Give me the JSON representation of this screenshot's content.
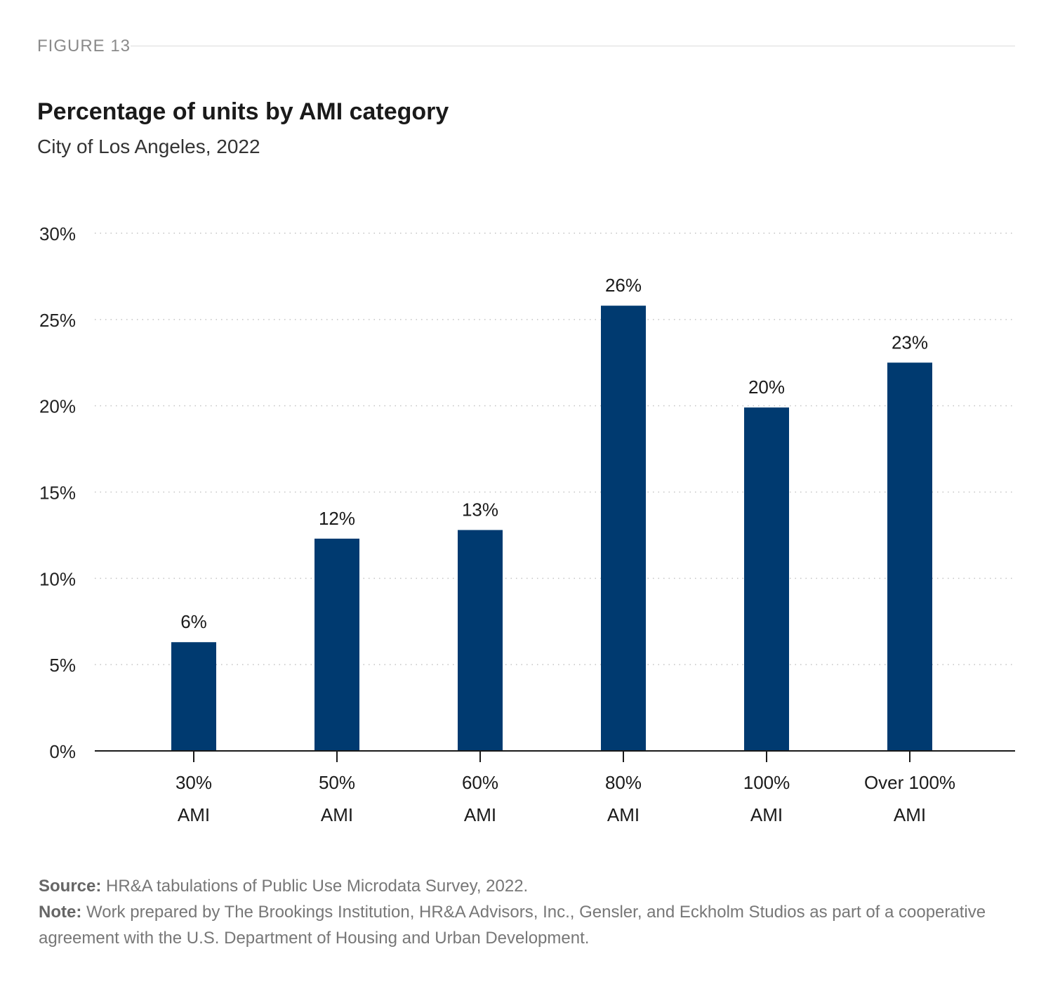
{
  "figure_label": "FIGURE 13",
  "footer": {
    "source_label": "Source:",
    "source_text": "HR&A tabulations of Public Use Microdata Survey, 2022.",
    "note_label": "Note:",
    "note_text": "Work prepared by The Brookings Institution, HR&A Advisors, Inc., Gensler, and Eckholm Studios as part of a cooperative agreement with the U.S. Department of Housing and Urban Development."
  },
  "chart_data": {
    "type": "bar",
    "title": "Percentage of units by AMI category",
    "subtitle": "City of Los Angeles, 2022",
    "categories": [
      [
        "30%",
        "AMI"
      ],
      [
        "50%",
        "AMI"
      ],
      [
        "60%",
        "AMI"
      ],
      [
        "80%",
        "AMI"
      ],
      [
        "100%",
        "AMI"
      ],
      [
        "Over 100%",
        "AMI"
      ]
    ],
    "values": [
      6.3,
      12.3,
      12.8,
      25.8,
      19.9,
      22.5
    ],
    "data_labels": [
      "6%",
      "12%",
      "13%",
      "26%",
      "20%",
      "23%"
    ],
    "ylim": [
      0,
      30
    ],
    "yticks": [
      0,
      5,
      10,
      15,
      20,
      25,
      30
    ],
    "ytick_labels": [
      "0%",
      "5%",
      "10%",
      "15%",
      "20%",
      "25%",
      "30%"
    ],
    "grid": true,
    "bar_color": "#003a70"
  }
}
